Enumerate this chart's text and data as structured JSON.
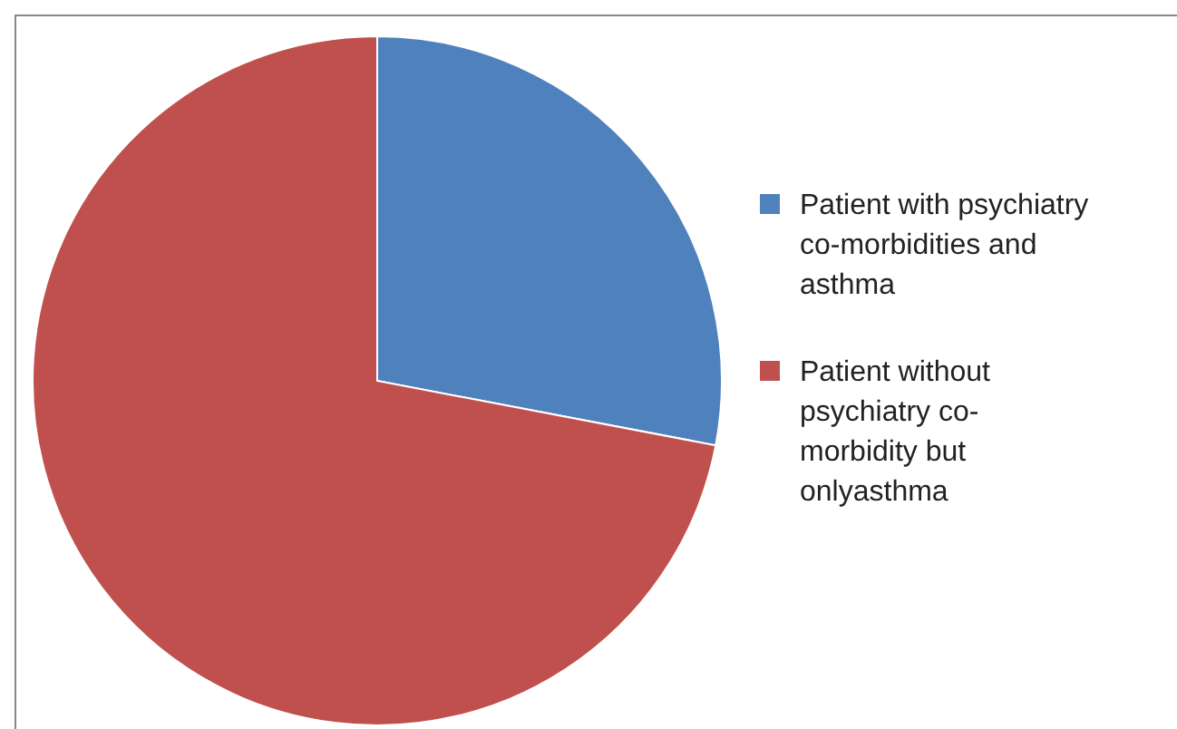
{
  "chart_data": {
    "type": "pie",
    "categories": [
      "Patient with psychiatry co-morbidities and asthma",
      "Patient without psychiatry co-morbidity but onlyasthma"
    ],
    "values": [
      28,
      72
    ],
    "colors": [
      "#4f81bd",
      "#c0504d"
    ],
    "legend": "right"
  }
}
